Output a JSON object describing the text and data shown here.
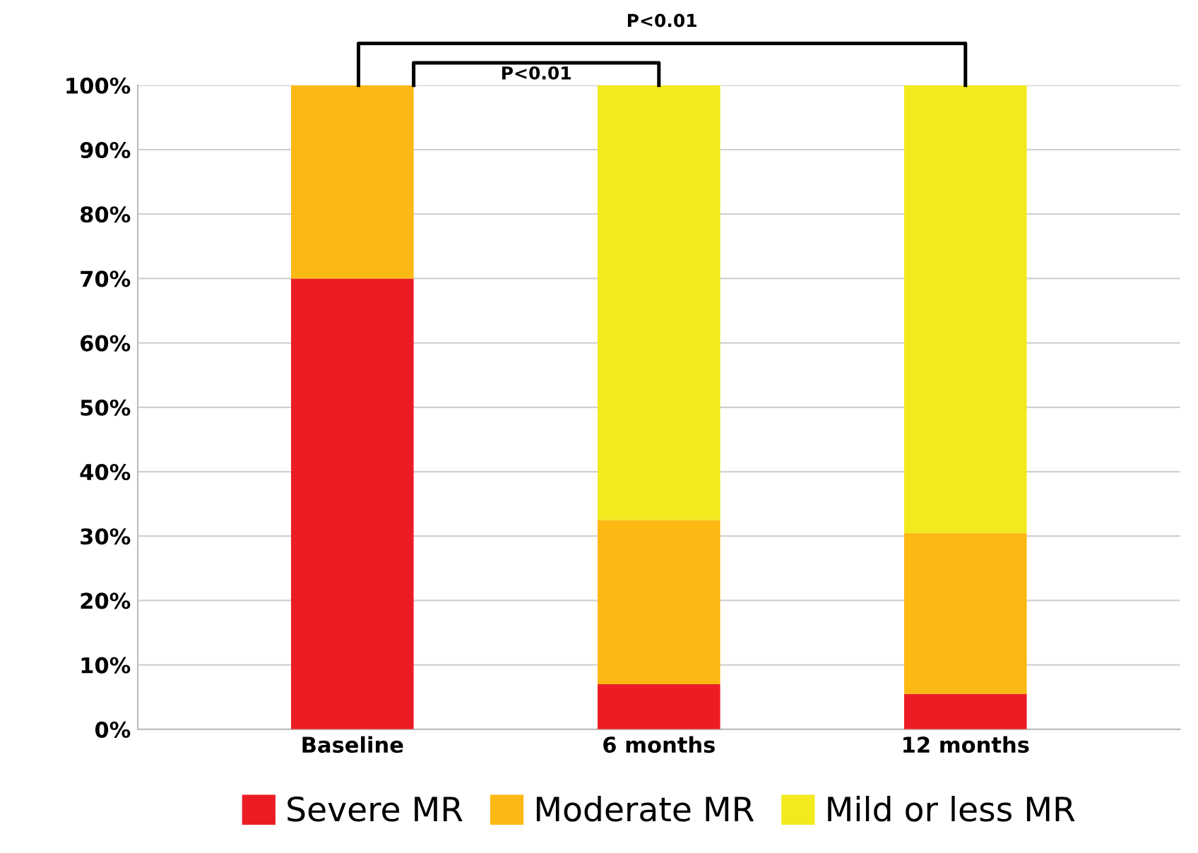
{
  "chart_data": {
    "type": "bar",
    "stacked": true,
    "categories": [
      "Baseline",
      "6 months",
      "12 months"
    ],
    "series": [
      {
        "name": "Severe MR",
        "color": "#ed1c24",
        "values": [
          70,
          7,
          5.5
        ]
      },
      {
        "name": "Moderate MR",
        "color": "#fdb913",
        "values": [
          30,
          25.5,
          25
        ]
      },
      {
        "name": "Mild or less MR",
        "color": "#f2ea1d",
        "values": [
          0,
          67.5,
          69.5
        ]
      }
    ],
    "ylim": [
      0,
      100
    ],
    "yticks": [
      {
        "value": 0,
        "label": "0%"
      },
      {
        "value": 10,
        "label": "10%"
      },
      {
        "value": 20,
        "label": "20%"
      },
      {
        "value": 30,
        "label": "30%"
      },
      {
        "value": 40,
        "label": "40%"
      },
      {
        "value": 50,
        "label": "50%"
      },
      {
        "value": 60,
        "label": "60%"
      },
      {
        "value": 70,
        "label": "70%"
      },
      {
        "value": 80,
        "label": "80%"
      },
      {
        "value": 90,
        "label": "90%"
      },
      {
        "value": 100,
        "label": "100%"
      }
    ],
    "grid": "y",
    "legend": "bottom",
    "annotations": [
      "P<0.01",
      "P<0.01"
    ]
  }
}
